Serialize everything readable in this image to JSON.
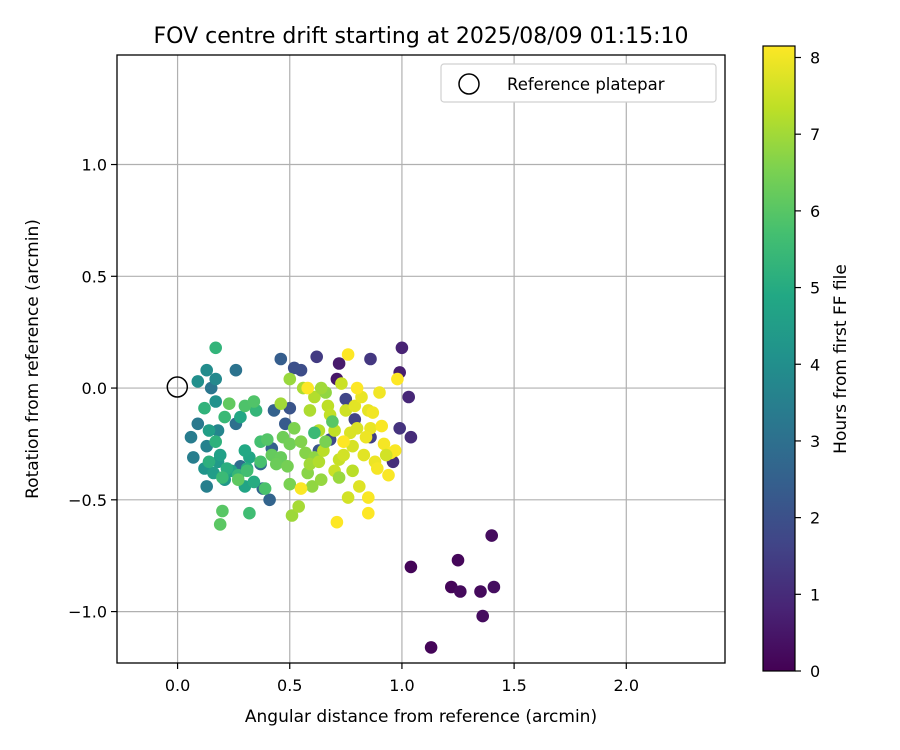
{
  "chart_data": {
    "type": "scatter",
    "title": "FOV centre drift starting at 2025/08/09 01:15:10",
    "xlabel": "Angular distance from reference (arcmin)",
    "ylabel": "Rotation from reference (arcmin)",
    "xlim": [
      -0.27,
      2.44
    ],
    "ylim": [
      -1.23,
      1.49
    ],
    "xticks": [
      0.0,
      0.5,
      1.0,
      1.5,
      2.0
    ],
    "xtick_labels": [
      "0.0",
      "0.5",
      "1.0",
      "1.5",
      "2.0"
    ],
    "yticks": [
      -1.0,
      -0.5,
      0.0,
      0.5,
      1.0
    ],
    "ytick_labels": [
      "−1.0",
      "−0.5",
      "0.0",
      "0.5",
      "1.0"
    ],
    "grid": true,
    "legend": {
      "position": "top-right",
      "entries": [
        "Reference platepar"
      ]
    },
    "reference_point": {
      "x": 0.0,
      "y": 0.0,
      "label": "Reference platepar"
    },
    "colorbar": {
      "label": "Hours from first FF file",
      "colormap": "viridis",
      "range": [
        0,
        8.15
      ],
      "ticks": [
        0,
        1,
        2,
        3,
        4,
        5,
        6,
        7,
        8
      ],
      "tick_labels": [
        "0",
        "1",
        "2",
        "3",
        "4",
        "5",
        "6",
        "7",
        "8"
      ]
    },
    "series": [
      {
        "columns": [
          "x",
          "y",
          "hours"
        ],
        "points": [
          [
            1.04,
            -0.8,
            0.1
          ],
          [
            1.13,
            -1.16,
            0.1
          ],
          [
            1.22,
            -0.89,
            0.1
          ],
          [
            1.25,
            -0.77,
            0.15
          ],
          [
            1.26,
            -0.91,
            0.2
          ],
          [
            1.35,
            -0.91,
            0.2
          ],
          [
            1.36,
            -1.02,
            0.25
          ],
          [
            1.4,
            -0.66,
            0.25
          ],
          [
            1.41,
            -0.89,
            0.3
          ],
          [
            0.71,
            0.04,
            0.5
          ],
          [
            0.72,
            0.11,
            0.6
          ],
          [
            0.99,
            0.07,
            0.7
          ],
          [
            1.0,
            0.18,
            0.8
          ],
          [
            1.03,
            -0.04,
            0.9
          ],
          [
            1.04,
            -0.22,
            1.0
          ],
          [
            0.96,
            -0.33,
            1.1
          ],
          [
            0.99,
            -0.18,
            1.2
          ],
          [
            0.86,
            0.13,
            1.3
          ],
          [
            0.62,
            0.14,
            1.4
          ],
          [
            0.86,
            -0.22,
            1.5
          ],
          [
            0.79,
            -0.14,
            1.6
          ],
          [
            0.75,
            -0.05,
            1.7
          ],
          [
            0.68,
            -0.23,
            1.8
          ],
          [
            0.55,
            0.08,
            1.9
          ],
          [
            0.52,
            0.09,
            2.0
          ],
          [
            0.5,
            -0.09,
            2.1
          ],
          [
            0.63,
            -0.28,
            2.2
          ],
          [
            0.48,
            -0.16,
            2.3
          ],
          [
            0.46,
            0.13,
            2.4
          ],
          [
            0.42,
            -0.27,
            2.5
          ],
          [
            0.43,
            -0.1,
            2.55
          ],
          [
            0.41,
            -0.5,
            2.6
          ],
          [
            0.38,
            -0.45,
            2.7
          ],
          [
            0.37,
            -0.34,
            2.8
          ],
          [
            0.28,
            -0.35,
            2.9
          ],
          [
            0.26,
            -0.16,
            3.0
          ],
          [
            0.26,
            0.08,
            3.1
          ],
          [
            0.15,
            0.0,
            3.2
          ],
          [
            0.09,
            -0.16,
            3.3
          ],
          [
            0.06,
            -0.22,
            3.4
          ],
          [
            0.07,
            -0.31,
            3.45
          ],
          [
            0.13,
            -0.44,
            3.5
          ],
          [
            0.13,
            -0.26,
            3.6
          ],
          [
            0.18,
            -0.19,
            3.7
          ],
          [
            0.17,
            0.04,
            3.8
          ],
          [
            0.13,
            0.08,
            3.9
          ],
          [
            0.09,
            0.03,
            4.0
          ],
          [
            0.17,
            -0.06,
            4.1
          ],
          [
            0.12,
            -0.36,
            4.2
          ],
          [
            0.21,
            -0.41,
            4.3
          ],
          [
            0.18,
            -0.33,
            4.4
          ],
          [
            0.16,
            -0.38,
            4.5
          ],
          [
            0.14,
            -0.19,
            4.55
          ],
          [
            0.19,
            -0.3,
            4.6
          ],
          [
            0.24,
            -0.37,
            4.7
          ],
          [
            0.3,
            -0.44,
            4.75
          ],
          [
            0.32,
            -0.31,
            4.8
          ],
          [
            0.28,
            -0.13,
            4.85
          ],
          [
            0.3,
            -0.28,
            4.9
          ],
          [
            0.34,
            -0.42,
            5.0
          ],
          [
            0.31,
            -0.36,
            5.05
          ],
          [
            0.22,
            -0.36,
            5.1
          ],
          [
            0.14,
            -0.33,
            5.15
          ],
          [
            0.17,
            -0.24,
            5.2
          ],
          [
            0.12,
            -0.09,
            5.25
          ],
          [
            0.17,
            0.18,
            5.3
          ],
          [
            0.35,
            -0.1,
            5.35
          ],
          [
            0.27,
            -0.39,
            5.4
          ],
          [
            0.21,
            -0.13,
            5.45
          ],
          [
            0.2,
            -0.4,
            5.5
          ],
          [
            0.32,
            -0.56,
            5.6
          ],
          [
            0.31,
            -0.37,
            5.65
          ],
          [
            0.37,
            -0.24,
            5.7
          ],
          [
            0.37,
            -0.33,
            5.75
          ],
          [
            0.39,
            -0.45,
            5.8
          ],
          [
            0.3,
            -0.08,
            5.85
          ],
          [
            0.34,
            -0.06,
            5.9
          ],
          [
            0.4,
            -0.23,
            5.95
          ],
          [
            0.2,
            -0.55,
            6.0
          ],
          [
            0.19,
            -0.61,
            6.05
          ],
          [
            0.27,
            -0.41,
            6.1
          ],
          [
            0.23,
            -0.07,
            6.15
          ],
          [
            0.42,
            -0.3,
            6.2
          ],
          [
            0.46,
            -0.31,
            6.25
          ],
          [
            0.44,
            -0.34,
            6.3
          ],
          [
            0.47,
            -0.22,
            6.35
          ],
          [
            0.5,
            -0.25,
            6.4
          ],
          [
            0.49,
            -0.35,
            6.45
          ],
          [
            0.5,
            -0.43,
            6.5
          ],
          [
            0.52,
            -0.18,
            6.55
          ],
          [
            0.55,
            -0.24,
            6.6
          ],
          [
            0.57,
            -0.29,
            6.65
          ],
          [
            0.58,
            -0.38,
            6.7
          ],
          [
            0.61,
            -0.31,
            6.75
          ],
          [
            0.6,
            -0.44,
            6.8
          ],
          [
            0.64,
            -0.41,
            6.85
          ],
          [
            0.5,
            0.04,
            6.9
          ],
          [
            0.51,
            -0.57,
            6.95
          ],
          [
            0.46,
            -0.07,
            7.0
          ],
          [
            0.54,
            -0.53,
            7.05
          ],
          [
            0.56,
            0.0,
            7.1
          ],
          [
            0.59,
            -0.1,
            7.15
          ],
          [
            0.61,
            -0.04,
            7.2
          ],
          [
            0.63,
            -0.19,
            7.25
          ],
          [
            0.65,
            -0.28,
            7.3
          ],
          [
            0.67,
            -0.08,
            7.35
          ],
          [
            0.7,
            -0.19,
            7.4
          ],
          [
            0.72,
            -0.32,
            7.45
          ],
          [
            0.73,
            0.02,
            7.5
          ],
          [
            0.75,
            -0.1,
            7.55
          ],
          [
            0.76,
            -0.49,
            7.6
          ],
          [
            0.78,
            -0.26,
            7.65
          ],
          [
            0.8,
            -0.18,
            7.7
          ],
          [
            0.81,
            -0.44,
            7.75
          ],
          [
            0.83,
            -0.3,
            7.8
          ],
          [
            0.85,
            -0.1,
            7.85
          ],
          [
            0.86,
            -0.18,
            7.9
          ],
          [
            0.88,
            -0.33,
            7.95
          ],
          [
            0.9,
            -0.02,
            8.0
          ],
          [
            0.92,
            -0.25,
            8.05
          ],
          [
            0.94,
            -0.39,
            8.1
          ],
          [
            0.97,
            -0.28,
            8.1
          ],
          [
            0.98,
            0.04,
            8.15
          ],
          [
            0.59,
            -0.34,
            7.0
          ],
          [
            0.63,
            -0.33,
            7.2
          ],
          [
            0.68,
            -0.12,
            7.4
          ],
          [
            0.7,
            -0.37,
            7.5
          ],
          [
            0.74,
            -0.3,
            7.6
          ],
          [
            0.77,
            -0.2,
            7.7
          ],
          [
            0.79,
            -0.08,
            7.8
          ],
          [
            0.82,
            -0.04,
            7.9
          ],
          [
            0.84,
            -0.22,
            7.95
          ],
          [
            0.87,
            -0.11,
            8.0
          ],
          [
            0.89,
            -0.36,
            8.05
          ],
          [
            0.91,
            -0.17,
            8.1
          ],
          [
            0.95,
            -0.29,
            8.1
          ],
          [
            0.71,
            -0.6,
            8.15
          ],
          [
            0.85,
            -0.56,
            8.15
          ],
          [
            0.85,
            -0.49,
            8.1
          ],
          [
            0.76,
            0.15,
            8.15
          ],
          [
            0.58,
            0.0,
            8.15
          ],
          [
            0.55,
            -0.45,
            8.1
          ],
          [
            0.74,
            -0.24,
            8.15
          ],
          [
            0.8,
            0.0,
            8.15
          ],
          [
            0.66,
            -0.24,
            6.5
          ],
          [
            0.61,
            -0.2,
            5.5
          ],
          [
            0.69,
            -0.15,
            6.0
          ],
          [
            0.66,
            -0.02,
            6.8
          ],
          [
            0.72,
            -0.4,
            6.9
          ],
          [
            0.78,
            -0.37,
            7.3
          ],
          [
            0.93,
            -0.3,
            7.6
          ],
          [
            0.64,
            0.0,
            7.0
          ]
        ]
      }
    ]
  }
}
